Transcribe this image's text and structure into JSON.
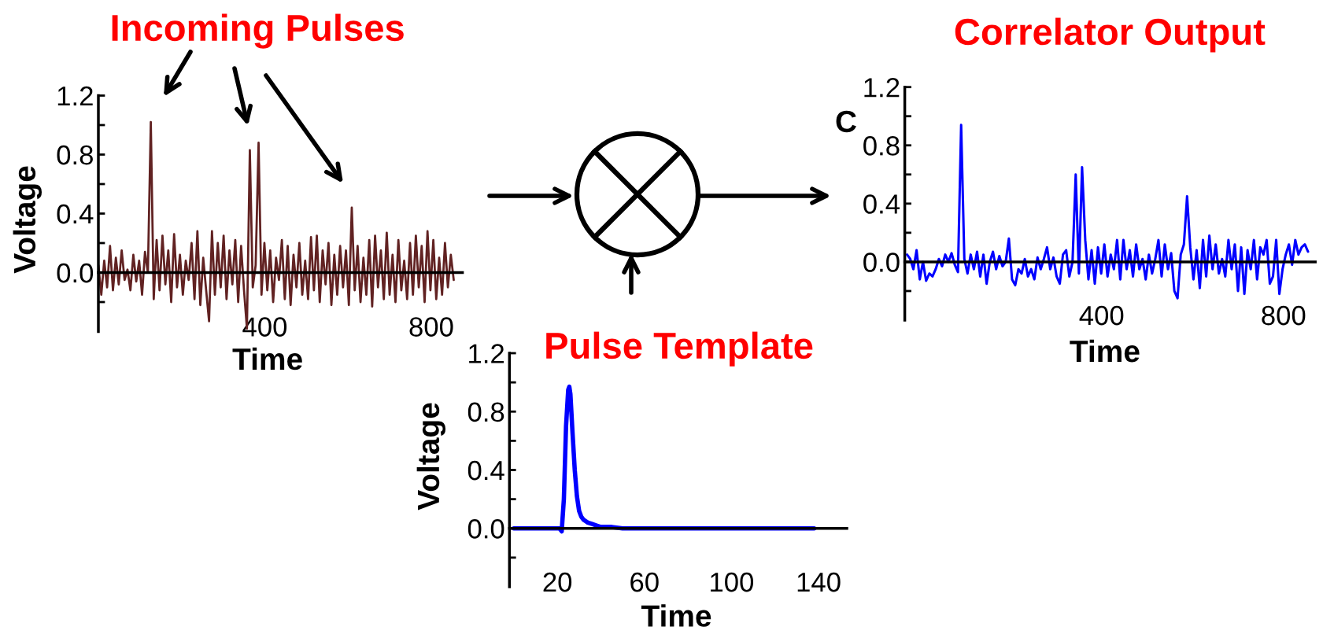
{
  "chart_data": [
    {
      "type": "line",
      "title": "Incoming Pulses",
      "xlabel": "Time",
      "ylabel": "Voltage",
      "x": [
        0,
        7,
        14,
        21,
        28,
        35,
        42,
        49,
        56,
        63,
        70,
        77,
        84,
        91,
        98,
        105,
        112,
        119,
        126,
        133,
        140,
        147,
        154,
        161,
        168,
        175,
        182,
        189,
        196,
        203,
        210,
        217,
        224,
        231,
        238,
        245,
        252,
        259,
        266,
        273,
        280,
        287,
        294,
        301,
        308,
        315,
        322,
        329,
        336,
        343,
        350,
        357,
        364,
        371,
        378,
        385,
        392,
        399,
        406,
        413,
        420,
        427,
        434,
        441,
        448,
        455,
        462,
        469,
        476,
        483,
        490,
        497,
        504,
        511,
        518,
        525,
        532,
        539,
        546,
        553,
        560,
        567,
        574,
        581,
        588,
        595,
        602,
        609,
        616,
        623,
        630,
        637,
        644,
        651,
        658,
        665,
        672,
        679,
        686,
        693,
        700,
        707,
        714,
        721,
        728,
        735,
        742,
        749,
        756,
        763,
        770,
        777,
        784,
        791,
        798,
        805,
        812,
        819,
        826,
        833,
        840,
        847,
        854
      ],
      "series": [
        {
          "color": "#612222",
          "values": [
            0.05,
            -0.15,
            0.08,
            -0.1,
            0.18,
            -0.12,
            0.1,
            -0.08,
            0.15,
            -0.05,
            0.02,
            -0.12,
            0.12,
            -0.06,
            0.08,
            -0.15,
            0.14,
            0.0,
            1.02,
            -0.18,
            0.22,
            -0.12,
            0.25,
            -0.08,
            0.15,
            -0.2,
            0.26,
            -0.1,
            0.12,
            -0.15,
            0.08,
            -0.05,
            0.2,
            -0.18,
            0.28,
            -0.22,
            0.1,
            -0.12,
            -0.33,
            0.28,
            -0.15,
            0.2,
            -0.1,
            0.25,
            -0.18,
            0.15,
            -0.08,
            0.22,
            -0.2,
            0.18,
            -0.12,
            -0.38,
            0.83,
            -0.1,
            0.05,
            0.88,
            -0.15,
            0.2,
            -0.12,
            0.15,
            -0.2,
            0.1,
            -0.05,
            0.22,
            -0.18,
            0.18,
            -0.22,
            0.12,
            -0.1,
            0.2,
            -0.15,
            0.08,
            -0.18,
            0.24,
            -0.12,
            0.25,
            -0.2,
            0.15,
            -0.08,
            0.2,
            -0.22,
            0.12,
            -0.15,
            0.18,
            -0.1,
            0.15,
            -0.22,
            0.44,
            -0.12,
            0.18,
            -0.2,
            0.1,
            -0.15,
            0.22,
            -0.23,
            0.25,
            -0.1,
            0.15,
            -0.18,
            0.27,
            -0.15,
            0.12,
            -0.2,
            0.22,
            -0.12,
            0.08,
            -0.18,
            0.2,
            -0.15,
            0.25,
            -0.1,
            0.18,
            -0.2,
            0.28,
            -0.12,
            0.22,
            -0.18,
            0.1,
            -0.15,
            0.2,
            -0.1,
            0.12,
            -0.05
          ]
        }
      ],
      "xlim": [
        0,
        875
      ],
      "ylim": [
        -0.4,
        1.2
      ],
      "xticks": [
        400,
        800
      ],
      "yticks": [
        {
          "value": -0.2,
          "label": null
        },
        {
          "value": 0,
          "label": "0.0"
        },
        {
          "value": 0.2,
          "label": null
        },
        0.4,
        {
          "value": 0.6,
          "label": null
        },
        0.8,
        {
          "value": 1.0,
          "label": null
        },
        1.2
      ]
    },
    {
      "type": "line",
      "title": "Correlator Output",
      "xlabel": "Time",
      "ylabel": "C",
      "x": [
        -28,
        -21,
        -14,
        -7,
        0,
        7,
        14,
        21,
        28,
        35,
        42,
        49,
        56,
        63,
        70,
        77,
        84,
        91,
        98,
        105,
        112,
        119,
        126,
        133,
        140,
        147,
        154,
        161,
        168,
        175,
        182,
        189,
        196,
        203,
        210,
        217,
        224,
        231,
        238,
        245,
        252,
        259,
        266,
        273,
        280,
        287,
        294,
        301,
        308,
        315,
        322,
        329,
        336,
        343,
        350,
        357,
        364,
        371,
        378,
        385,
        392,
        399,
        406,
        413,
        420,
        427,
        434,
        441,
        448,
        455,
        462,
        469,
        476,
        483,
        490,
        497,
        504,
        511,
        518,
        525,
        532,
        539,
        546,
        553,
        560,
        567,
        574,
        581,
        588,
        595,
        602,
        609,
        616,
        623,
        630,
        637,
        644,
        651,
        658,
        665,
        672,
        679,
        686,
        693,
        700,
        707,
        714,
        721,
        728,
        735,
        742,
        749,
        756,
        763,
        770,
        777,
        784,
        791,
        798,
        805,
        812,
        819,
        826,
        833,
        840,
        847,
        854
      ],
      "series": [
        {
          "color": "#0000ff",
          "values": [
            0.05,
            0.02,
            -0.05,
            0.08,
            -0.12,
            0.0,
            -0.13,
            -0.08,
            -0.1,
            -0.05,
            0.02,
            -0.03,
            0.05,
            0.0,
            0.06,
            -0.02,
            -0.07,
            0.94,
            0.02,
            -0.08,
            0.05,
            -0.05,
            0.07,
            -0.1,
            0.05,
            -0.15,
            0.0,
            0.07,
            -0.05,
            0.04,
            -0.03,
            0.0,
            0.16,
            -0.12,
            -0.16,
            -0.05,
            -0.08,
            0.02,
            -0.1,
            -0.05,
            -0.12,
            0.03,
            -0.05,
            0.02,
            0.1,
            -0.05,
            0.03,
            -0.1,
            -0.15,
            0.05,
            0.08,
            -0.1,
            0.0,
            0.6,
            -0.08,
            0.65,
            0.15,
            -0.12,
            0.08,
            -0.15,
            0.1,
            -0.08,
            0.12,
            -0.1,
            0.05,
            -0.05,
            0.15,
            -0.12,
            0.15,
            -0.05,
            0.08,
            -0.1,
            0.12,
            -0.05,
            0.02,
            -0.12,
            0.05,
            -0.08,
            0.02,
            0.15,
            -0.1,
            0.12,
            -0.05,
            0.06,
            -0.2,
            -0.25,
            0.05,
            0.12,
            0.45,
            0.1,
            -0.12,
            0.08,
            -0.18,
            0.15,
            -0.1,
            0.18,
            -0.05,
            0.12,
            -0.08,
            0.02,
            -0.1,
            0.15,
            -0.05,
            0.12,
            -0.2,
            0.1,
            -0.22,
            0.08,
            -0.05,
            0.15,
            -0.12,
            0.1,
            0.05,
            0.15,
            -0.15,
            -0.1,
            0.15,
            -0.22,
            -0.05,
            0.05,
            0.12,
            -0.02,
            0.15,
            0.05,
            0.1,
            0.12,
            0.07
          ]
        }
      ],
      "xlim": [
        -33,
        870
      ],
      "ylim": [
        -0.4,
        1.2
      ],
      "xticks": [
        400,
        800
      ],
      "yticks": [
        {
          "value": -0.2,
          "label": null
        },
        {
          "value": 0,
          "label": "0.0"
        },
        {
          "value": 0.2,
          "label": null
        },
        0.4,
        {
          "value": 0.6,
          "label": null
        },
        0.8,
        {
          "value": 1.0,
          "label": null
        },
        1.2
      ]
    },
    {
      "type": "line",
      "title": "Pulse Template",
      "xlabel": "Time",
      "ylabel": "Voltage",
      "x": [
        0,
        5,
        10,
        15,
        20,
        21,
        22,
        23,
        24,
        25,
        25.5,
        26,
        27,
        28,
        29,
        30,
        31,
        32,
        33,
        34,
        36,
        38,
        40,
        42,
        45,
        50,
        60,
        70,
        80,
        90,
        100,
        110,
        120,
        130,
        138
      ],
      "series": [
        {
          "color": "#0000ff",
          "values": [
            0,
            0,
            0,
            0,
            0,
            0,
            -0.02,
            0.2,
            0.7,
            0.95,
            0.97,
            0.92,
            0.65,
            0.4,
            0.22,
            0.12,
            0.08,
            0.06,
            0.05,
            0.04,
            0.03,
            0.02,
            0.01,
            0.01,
            0.01,
            0,
            0,
            0,
            0,
            0,
            0,
            0,
            0,
            0,
            0
          ]
        }
      ],
      "xlim": [
        -2,
        153
      ],
      "ylim": [
        -0.4,
        1.2
      ],
      "xticks": [
        20,
        60,
        100,
        140
      ],
      "yticks": [
        {
          "value": -0.2,
          "label": null
        },
        {
          "value": 0,
          "label": "0.0"
        },
        {
          "value": 0.2,
          "label": null
        },
        0.4,
        {
          "value": 0.6,
          "label": null
        },
        0.8,
        {
          "value": 1.0,
          "label": null
        },
        1.2
      ]
    }
  ]
}
